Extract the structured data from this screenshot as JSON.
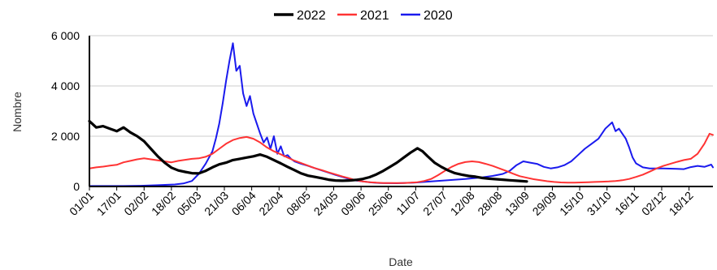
{
  "chart_data": {
    "type": "line",
    "title": "",
    "xlabel": "Date",
    "ylabel": "Nombre",
    "ylim": [
      0,
      6000
    ],
    "yticks": [
      0,
      2000,
      4000,
      6000
    ],
    "ytick_labels": [
      "0",
      "2 000",
      "4 000",
      "6 000"
    ],
    "xlim": [
      0,
      365
    ],
    "xticks": [
      {
        "day": 0,
        "label": "01/01"
      },
      {
        "day": 16,
        "label": "17/01"
      },
      {
        "day": 32,
        "label": "02/02"
      },
      {
        "day": 48,
        "label": "18/02"
      },
      {
        "day": 63,
        "label": "05/03"
      },
      {
        "day": 79,
        "label": "21/03"
      },
      {
        "day": 95,
        "label": "06/04"
      },
      {
        "day": 111,
        "label": "22/04"
      },
      {
        "day": 127,
        "label": "08/05"
      },
      {
        "day": 143,
        "label": "24/05"
      },
      {
        "day": 159,
        "label": "09/06"
      },
      {
        "day": 175,
        "label": "25/06"
      },
      {
        "day": 191,
        "label": "11/07"
      },
      {
        "day": 207,
        "label": "27/07"
      },
      {
        "day": 223,
        "label": "12/08"
      },
      {
        "day": 239,
        "label": "28/08"
      },
      {
        "day": 255,
        "label": "13/09"
      },
      {
        "day": 271,
        "label": "29/09"
      },
      {
        "day": 287,
        "label": "15/10"
      },
      {
        "day": 303,
        "label": "31/10"
      },
      {
        "day": 319,
        "label": "16/11"
      },
      {
        "day": 335,
        "label": "02/12"
      },
      {
        "day": 351,
        "label": "18/12"
      }
    ],
    "grid": true,
    "legend_position": "top",
    "series": [
      {
        "name": "2022",
        "color": "#000000",
        "points": [
          [
            0,
            2600
          ],
          [
            4,
            2350
          ],
          [
            8,
            2400
          ],
          [
            12,
            2300
          ],
          [
            16,
            2200
          ],
          [
            20,
            2350
          ],
          [
            24,
            2150
          ],
          [
            28,
            2000
          ],
          [
            32,
            1800
          ],
          [
            36,
            1500
          ],
          [
            40,
            1200
          ],
          [
            44,
            950
          ],
          [
            48,
            750
          ],
          [
            52,
            640
          ],
          [
            56,
            580
          ],
          [
            60,
            530
          ],
          [
            64,
            520
          ],
          [
            68,
            620
          ],
          [
            72,
            760
          ],
          [
            76,
            880
          ],
          [
            80,
            950
          ],
          [
            84,
            1050
          ],
          [
            88,
            1100
          ],
          [
            92,
            1150
          ],
          [
            96,
            1200
          ],
          [
            100,
            1270
          ],
          [
            104,
            1180
          ],
          [
            108,
            1050
          ],
          [
            112,
            920
          ],
          [
            116,
            780
          ],
          [
            120,
            650
          ],
          [
            124,
            520
          ],
          [
            128,
            430
          ],
          [
            132,
            380
          ],
          [
            136,
            330
          ],
          [
            140,
            270
          ],
          [
            144,
            240
          ],
          [
            148,
            230
          ],
          [
            152,
            240
          ],
          [
            156,
            260
          ],
          [
            160,
            300
          ],
          [
            164,
            370
          ],
          [
            168,
            480
          ],
          [
            172,
            620
          ],
          [
            176,
            780
          ],
          [
            180,
            950
          ],
          [
            184,
            1150
          ],
          [
            188,
            1350
          ],
          [
            192,
            1520
          ],
          [
            195,
            1400
          ],
          [
            198,
            1200
          ],
          [
            202,
            950
          ],
          [
            206,
            780
          ],
          [
            210,
            640
          ],
          [
            214,
            530
          ],
          [
            218,
            470
          ],
          [
            222,
            420
          ],
          [
            226,
            390
          ],
          [
            230,
            340
          ],
          [
            234,
            310
          ],
          [
            238,
            290
          ],
          [
            242,
            270
          ],
          [
            246,
            250
          ],
          [
            250,
            230
          ],
          [
            254,
            210
          ],
          [
            256,
            200
          ]
        ]
      },
      {
        "name": "2021",
        "color": "#ff3333",
        "points": [
          [
            0,
            720
          ],
          [
            4,
            760
          ],
          [
            8,
            790
          ],
          [
            12,
            830
          ],
          [
            16,
            860
          ],
          [
            20,
            960
          ],
          [
            24,
            1020
          ],
          [
            28,
            1080
          ],
          [
            32,
            1120
          ],
          [
            36,
            1080
          ],
          [
            40,
            1040
          ],
          [
            44,
            1000
          ],
          [
            48,
            960
          ],
          [
            52,
            1020
          ],
          [
            56,
            1060
          ],
          [
            60,
            1100
          ],
          [
            64,
            1120
          ],
          [
            68,
            1180
          ],
          [
            72,
            1300
          ],
          [
            76,
            1500
          ],
          [
            80,
            1700
          ],
          [
            84,
            1850
          ],
          [
            88,
            1930
          ],
          [
            92,
            1970
          ],
          [
            96,
            1900
          ],
          [
            100,
            1750
          ],
          [
            104,
            1550
          ],
          [
            108,
            1400
          ],
          [
            112,
            1280
          ],
          [
            116,
            1150
          ],
          [
            120,
            1030
          ],
          [
            124,
            930
          ],
          [
            128,
            830
          ],
          [
            132,
            730
          ],
          [
            136,
            650
          ],
          [
            140,
            560
          ],
          [
            144,
            480
          ],
          [
            148,
            400
          ],
          [
            152,
            330
          ],
          [
            156,
            250
          ],
          [
            160,
            200
          ],
          [
            164,
            170
          ],
          [
            168,
            150
          ],
          [
            172,
            140
          ],
          [
            176,
            140
          ],
          [
            180,
            140
          ],
          [
            184,
            140
          ],
          [
            188,
            150
          ],
          [
            192,
            170
          ],
          [
            196,
            220
          ],
          [
            200,
            300
          ],
          [
            204,
            450
          ],
          [
            208,
            620
          ],
          [
            212,
            780
          ],
          [
            216,
            900
          ],
          [
            220,
            970
          ],
          [
            224,
            1000
          ],
          [
            228,
            970
          ],
          [
            232,
            900
          ],
          [
            236,
            820
          ],
          [
            240,
            720
          ],
          [
            244,
            620
          ],
          [
            248,
            510
          ],
          [
            252,
            410
          ],
          [
            256,
            350
          ],
          [
            260,
            290
          ],
          [
            264,
            250
          ],
          [
            268,
            210
          ],
          [
            272,
            180
          ],
          [
            276,
            160
          ],
          [
            280,
            150
          ],
          [
            284,
            150
          ],
          [
            288,
            160
          ],
          [
            292,
            170
          ],
          [
            296,
            180
          ],
          [
            300,
            190
          ],
          [
            304,
            200
          ],
          [
            308,
            220
          ],
          [
            312,
            250
          ],
          [
            316,
            300
          ],
          [
            320,
            380
          ],
          [
            324,
            470
          ],
          [
            328,
            590
          ],
          [
            332,
            720
          ],
          [
            336,
            820
          ],
          [
            340,
            900
          ],
          [
            344,
            980
          ],
          [
            348,
            1050
          ],
          [
            352,
            1100
          ],
          [
            356,
            1300
          ],
          [
            360,
            1700
          ],
          [
            363,
            2100
          ],
          [
            365,
            2050
          ]
        ]
      },
      {
        "name": "2020",
        "color": "#1a1aee",
        "points": [
          [
            0,
            20
          ],
          [
            10,
            20
          ],
          [
            20,
            20
          ],
          [
            30,
            30
          ],
          [
            40,
            50
          ],
          [
            50,
            80
          ],
          [
            55,
            120
          ],
          [
            60,
            220
          ],
          [
            64,
            500
          ],
          [
            68,
            900
          ],
          [
            72,
            1400
          ],
          [
            74,
            1900
          ],
          [
            76,
            2500
          ],
          [
            78,
            3300
          ],
          [
            80,
            4200
          ],
          [
            82,
            5000
          ],
          [
            84,
            5700
          ],
          [
            86,
            4600
          ],
          [
            88,
            4800
          ],
          [
            90,
            3700
          ],
          [
            92,
            3200
          ],
          [
            94,
            3600
          ],
          [
            96,
            2900
          ],
          [
            98,
            2500
          ],
          [
            100,
            2100
          ],
          [
            102,
            1750
          ],
          [
            104,
            1950
          ],
          [
            106,
            1500
          ],
          [
            108,
            2000
          ],
          [
            110,
            1300
          ],
          [
            112,
            1600
          ],
          [
            114,
            1200
          ],
          [
            116,
            1250
          ],
          [
            118,
            1100
          ],
          [
            120,
            1000
          ],
          [
            124,
            900
          ],
          [
            128,
            820
          ],
          [
            132,
            730
          ],
          [
            136,
            640
          ],
          [
            140,
            550
          ],
          [
            144,
            460
          ],
          [
            148,
            380
          ],
          [
            152,
            300
          ],
          [
            156,
            240
          ],
          [
            160,
            200
          ],
          [
            165,
            160
          ],
          [
            170,
            140
          ],
          [
            180,
            130
          ],
          [
            190,
            150
          ],
          [
            200,
            200
          ],
          [
            210,
            250
          ],
          [
            220,
            300
          ],
          [
            230,
            360
          ],
          [
            236,
            420
          ],
          [
            242,
            500
          ],
          [
            246,
            620
          ],
          [
            250,
            850
          ],
          [
            254,
            1000
          ],
          [
            258,
            950
          ],
          [
            262,
            900
          ],
          [
            266,
            780
          ],
          [
            270,
            720
          ],
          [
            274,
            760
          ],
          [
            278,
            850
          ],
          [
            282,
            1000
          ],
          [
            286,
            1250
          ],
          [
            290,
            1500
          ],
          [
            294,
            1700
          ],
          [
            298,
            1900
          ],
          [
            302,
            2300
          ],
          [
            306,
            2550
          ],
          [
            308,
            2200
          ],
          [
            310,
            2300
          ],
          [
            312,
            2100
          ],
          [
            314,
            1900
          ],
          [
            316,
            1550
          ],
          [
            318,
            1150
          ],
          [
            320,
            920
          ],
          [
            324,
            760
          ],
          [
            328,
            720
          ],
          [
            332,
            720
          ],
          [
            336,
            720
          ],
          [
            340,
            710
          ],
          [
            344,
            700
          ],
          [
            348,
            690
          ],
          [
            352,
            770
          ],
          [
            356,
            820
          ],
          [
            360,
            780
          ],
          [
            364,
            870
          ],
          [
            365,
            760
          ]
        ]
      }
    ]
  }
}
